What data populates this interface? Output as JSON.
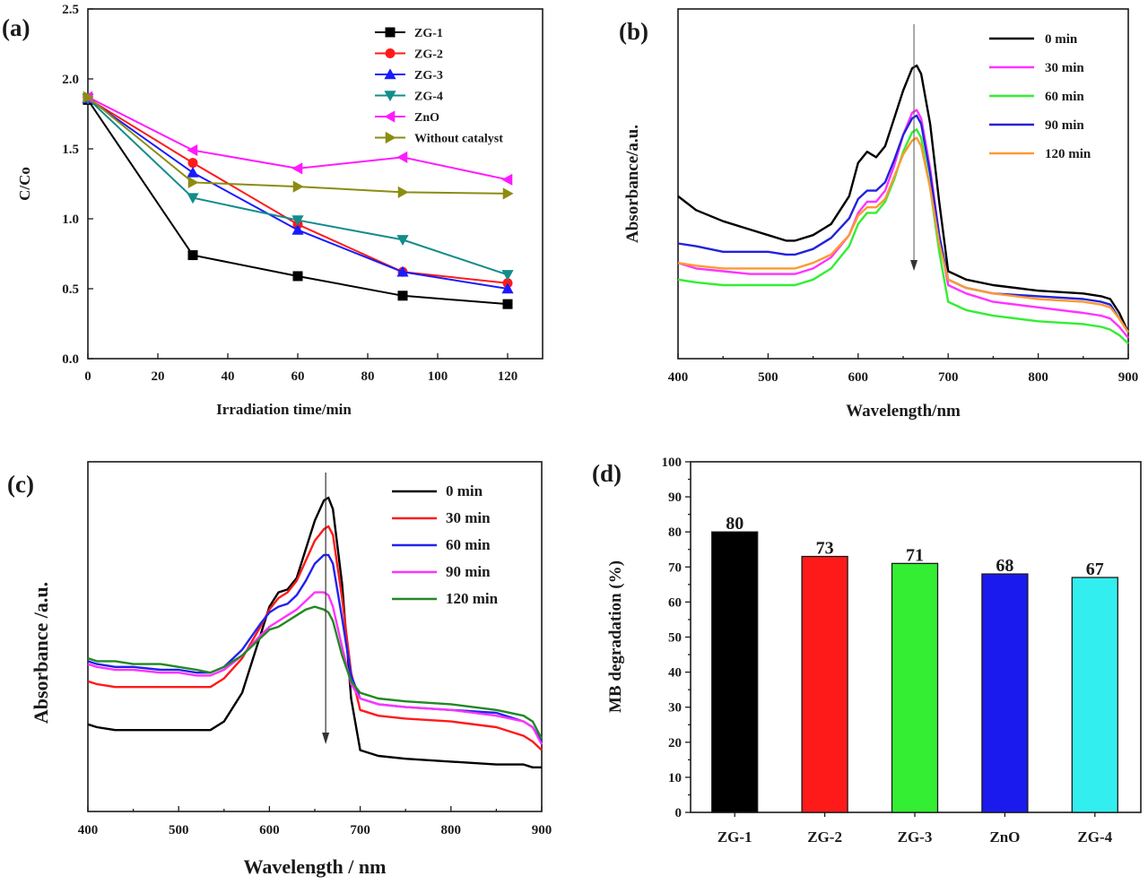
{
  "chart_data": [
    {
      "panel": "(a)",
      "type": "line",
      "xlabel": "Irradiation time/min",
      "ylabel": "C/Co",
      "xlim": [
        0,
        130
      ],
      "ylim": [
        0,
        2.5
      ],
      "xticks": [
        0,
        20,
        40,
        60,
        80,
        100,
        120
      ],
      "yticks": [
        "0.0",
        "0.5",
        "1.0",
        "1.5",
        "2.0",
        "2.5"
      ],
      "legend_position": "top-right",
      "x": [
        0,
        30,
        60,
        90,
        120
      ],
      "series": [
        {
          "name": "ZG-1",
          "color": "#000000",
          "marker": "square",
          "values": [
            1.85,
            0.74,
            0.59,
            0.45,
            0.39
          ]
        },
        {
          "name": "ZG-2",
          "color": "#ff1a1a",
          "marker": "circle",
          "values": [
            1.86,
            1.4,
            0.96,
            0.62,
            0.54
          ]
        },
        {
          "name": "ZG-3",
          "color": "#1a1aff",
          "marker": "triangle-up",
          "values": [
            1.86,
            1.33,
            0.92,
            0.62,
            0.5
          ]
        },
        {
          "name": "ZG-4",
          "color": "#138c8c",
          "marker": "triangle-down",
          "values": [
            1.86,
            1.15,
            0.99,
            0.85,
            0.6
          ]
        },
        {
          "name": "ZnO",
          "color": "#ff1aff",
          "marker": "triangle-left",
          "values": [
            1.87,
            1.49,
            1.36,
            1.44,
            1.28
          ]
        },
        {
          "name": "Without catalyst",
          "color": "#8c8c12",
          "marker": "triangle-right",
          "values": [
            1.87,
            1.26,
            1.23,
            1.19,
            1.18
          ]
        }
      ]
    },
    {
      "panel": "(b)",
      "type": "line",
      "xlabel": "Wavelength/nm",
      "ylabel": "Absorbance/a.u.",
      "xlim": [
        400,
        900
      ],
      "ylim": [
        0,
        1
      ],
      "xticks": [
        400,
        500,
        600,
        700,
        800,
        900
      ],
      "legend_position": "top-right",
      "arrow_x": 662,
      "series": [
        {
          "name": "0 min",
          "color": "#000000",
          "x": [
            400,
            420,
            450,
            480,
            500,
            520,
            530,
            550,
            570,
            590,
            600,
            610,
            620,
            630,
            640,
            650,
            660,
            665,
            670,
            680,
            690,
            700,
            720,
            750,
            800,
            850,
            870,
            880,
            890,
            900
          ],
          "y": [
            0.52,
            0.47,
            0.43,
            0.4,
            0.38,
            0.36,
            0.36,
            0.38,
            0.42,
            0.52,
            0.64,
            0.68,
            0.66,
            0.7,
            0.8,
            0.9,
            0.98,
            0.99,
            0.96,
            0.78,
            0.5,
            0.25,
            0.22,
            0.2,
            0.18,
            0.17,
            0.16,
            0.15,
            0.1,
            0.03
          ]
        },
        {
          "name": "30 min",
          "color": "#ff33ff",
          "x": [
            400,
            420,
            450,
            480,
            500,
            520,
            530,
            550,
            570,
            590,
            600,
            610,
            620,
            630,
            640,
            650,
            660,
            665,
            670,
            680,
            690,
            700,
            720,
            750,
            800,
            850,
            870,
            880,
            890,
            900
          ],
          "y": [
            0.28,
            0.26,
            0.25,
            0.24,
            0.24,
            0.24,
            0.24,
            0.26,
            0.3,
            0.38,
            0.46,
            0.5,
            0.5,
            0.54,
            0.63,
            0.74,
            0.82,
            0.83,
            0.8,
            0.62,
            0.38,
            0.2,
            0.17,
            0.14,
            0.12,
            0.1,
            0.09,
            0.08,
            0.05,
            0.01
          ]
        },
        {
          "name": "60 min",
          "color": "#33ee33",
          "x": [
            400,
            420,
            450,
            480,
            500,
            520,
            530,
            550,
            570,
            590,
            600,
            610,
            620,
            630,
            640,
            650,
            660,
            665,
            670,
            680,
            690,
            700,
            720,
            750,
            800,
            850,
            870,
            880,
            890,
            900
          ],
          "y": [
            0.22,
            0.21,
            0.2,
            0.2,
            0.2,
            0.2,
            0.2,
            0.22,
            0.26,
            0.34,
            0.42,
            0.46,
            0.46,
            0.5,
            0.58,
            0.68,
            0.75,
            0.76,
            0.73,
            0.55,
            0.32,
            0.14,
            0.11,
            0.09,
            0.07,
            0.06,
            0.05,
            0.04,
            0.02,
            -0.01
          ]
        },
        {
          "name": "90 min",
          "color": "#2222dd",
          "x": [
            400,
            420,
            450,
            480,
            500,
            520,
            530,
            550,
            570,
            590,
            600,
            610,
            620,
            630,
            640,
            650,
            660,
            665,
            670,
            680,
            690,
            700,
            720,
            750,
            800,
            850,
            870,
            880,
            890,
            900
          ],
          "y": [
            0.35,
            0.34,
            0.32,
            0.32,
            0.32,
            0.31,
            0.31,
            0.33,
            0.37,
            0.44,
            0.51,
            0.54,
            0.54,
            0.57,
            0.65,
            0.74,
            0.8,
            0.81,
            0.78,
            0.6,
            0.38,
            0.22,
            0.19,
            0.17,
            0.16,
            0.15,
            0.14,
            0.13,
            0.08,
            0.03
          ]
        },
        {
          "name": "120 min",
          "color": "#ff9933",
          "x": [
            400,
            420,
            450,
            480,
            500,
            520,
            530,
            550,
            570,
            590,
            600,
            610,
            620,
            630,
            640,
            650,
            660,
            665,
            670,
            680,
            690,
            700,
            720,
            750,
            800,
            850,
            870,
            880,
            890,
            900
          ],
          "y": [
            0.28,
            0.27,
            0.26,
            0.26,
            0.26,
            0.26,
            0.26,
            0.28,
            0.31,
            0.38,
            0.45,
            0.48,
            0.48,
            0.51,
            0.59,
            0.67,
            0.72,
            0.73,
            0.7,
            0.55,
            0.35,
            0.22,
            0.19,
            0.17,
            0.15,
            0.14,
            0.13,
            0.12,
            0.08,
            0.03
          ]
        }
      ]
    },
    {
      "panel": "(c)",
      "type": "line",
      "xlabel": "Wavelength / nm",
      "ylabel": "Absorbance /a.u.",
      "xlim": [
        400,
        900
      ],
      "ylim": [
        0,
        1
      ],
      "xticks": [
        400,
        500,
        600,
        700,
        800,
        900
      ],
      "legend_position": "top-right",
      "arrow_x": 662,
      "series": [
        {
          "name": "0 min",
          "color": "#000000",
          "x": [
            400,
            410,
            430,
            450,
            480,
            500,
            520,
            535,
            550,
            570,
            590,
            600,
            610,
            620,
            630,
            640,
            650,
            660,
            665,
            670,
            680,
            690,
            700,
            720,
            750,
            800,
            850,
            880,
            890,
            900
          ],
          "y": [
            0.21,
            0.2,
            0.19,
            0.19,
            0.19,
            0.19,
            0.19,
            0.19,
            0.22,
            0.32,
            0.52,
            0.62,
            0.67,
            0.68,
            0.72,
            0.82,
            0.92,
            0.99,
            1.0,
            0.96,
            0.7,
            0.3,
            0.12,
            0.1,
            0.09,
            0.08,
            0.07,
            0.07,
            0.06,
            0.06
          ]
        },
        {
          "name": "30 min",
          "color": "#ff1a1a",
          "x": [
            400,
            410,
            430,
            450,
            480,
            500,
            520,
            535,
            550,
            570,
            590,
            600,
            610,
            620,
            630,
            640,
            650,
            660,
            665,
            670,
            680,
            690,
            700,
            720,
            750,
            800,
            850,
            880,
            890,
            900
          ],
          "y": [
            0.36,
            0.35,
            0.34,
            0.34,
            0.34,
            0.34,
            0.34,
            0.34,
            0.37,
            0.44,
            0.55,
            0.61,
            0.65,
            0.67,
            0.71,
            0.78,
            0.85,
            0.89,
            0.9,
            0.87,
            0.65,
            0.39,
            0.26,
            0.24,
            0.23,
            0.22,
            0.2,
            0.17,
            0.15,
            0.12
          ]
        },
        {
          "name": "60 min",
          "color": "#2222ee",
          "x": [
            400,
            410,
            430,
            450,
            480,
            500,
            520,
            535,
            550,
            570,
            590,
            600,
            610,
            620,
            630,
            640,
            650,
            660,
            665,
            670,
            680,
            690,
            700,
            720,
            750,
            800,
            850,
            880,
            890,
            900
          ],
          "y": [
            0.43,
            0.42,
            0.41,
            0.41,
            0.4,
            0.4,
            0.39,
            0.39,
            0.41,
            0.47,
            0.56,
            0.6,
            0.62,
            0.63,
            0.66,
            0.71,
            0.77,
            0.8,
            0.8,
            0.77,
            0.58,
            0.38,
            0.3,
            0.28,
            0.27,
            0.26,
            0.25,
            0.22,
            0.2,
            0.15
          ]
        },
        {
          "name": "90 min",
          "color": "#ff33ff",
          "x": [
            400,
            410,
            430,
            450,
            480,
            500,
            520,
            535,
            550,
            570,
            590,
            600,
            610,
            620,
            630,
            640,
            650,
            660,
            665,
            670,
            680,
            690,
            700,
            720,
            750,
            800,
            850,
            880,
            890,
            900
          ],
          "y": [
            0.42,
            0.41,
            0.4,
            0.4,
            0.39,
            0.39,
            0.38,
            0.38,
            0.4,
            0.45,
            0.52,
            0.55,
            0.57,
            0.59,
            0.61,
            0.64,
            0.67,
            0.67,
            0.66,
            0.62,
            0.48,
            0.35,
            0.3,
            0.28,
            0.27,
            0.26,
            0.24,
            0.22,
            0.2,
            0.14
          ]
        },
        {
          "name": "120 min",
          "color": "#228822",
          "x": [
            400,
            410,
            430,
            450,
            480,
            500,
            520,
            535,
            550,
            570,
            590,
            600,
            610,
            620,
            630,
            640,
            650,
            660,
            665,
            670,
            680,
            690,
            700,
            720,
            750,
            800,
            850,
            880,
            890,
            900
          ],
          "y": [
            0.44,
            0.43,
            0.43,
            0.42,
            0.42,
            0.41,
            0.4,
            0.39,
            0.41,
            0.45,
            0.51,
            0.54,
            0.55,
            0.57,
            0.59,
            0.61,
            0.62,
            0.61,
            0.6,
            0.57,
            0.45,
            0.36,
            0.32,
            0.3,
            0.29,
            0.28,
            0.26,
            0.24,
            0.22,
            0.16
          ]
        }
      ]
    },
    {
      "panel": "(d)",
      "type": "bar",
      "ylabel": "MB degradation (%)",
      "ylim": [
        0,
        100
      ],
      "yticks": [
        0,
        10,
        20,
        30,
        40,
        50,
        60,
        70,
        80,
        90,
        100
      ],
      "categories": [
        "ZG-1",
        "ZG-2",
        "ZG-3",
        "ZnO",
        "ZG-4"
      ],
      "values": [
        80,
        73,
        71,
        68,
        67
      ],
      "colors": [
        "#000000",
        "#ff1a1a",
        "#33ee33",
        "#1a1aee",
        "#33eeee"
      ],
      "data_labels": [
        "80",
        "73",
        "71",
        "68",
        "67"
      ]
    }
  ]
}
